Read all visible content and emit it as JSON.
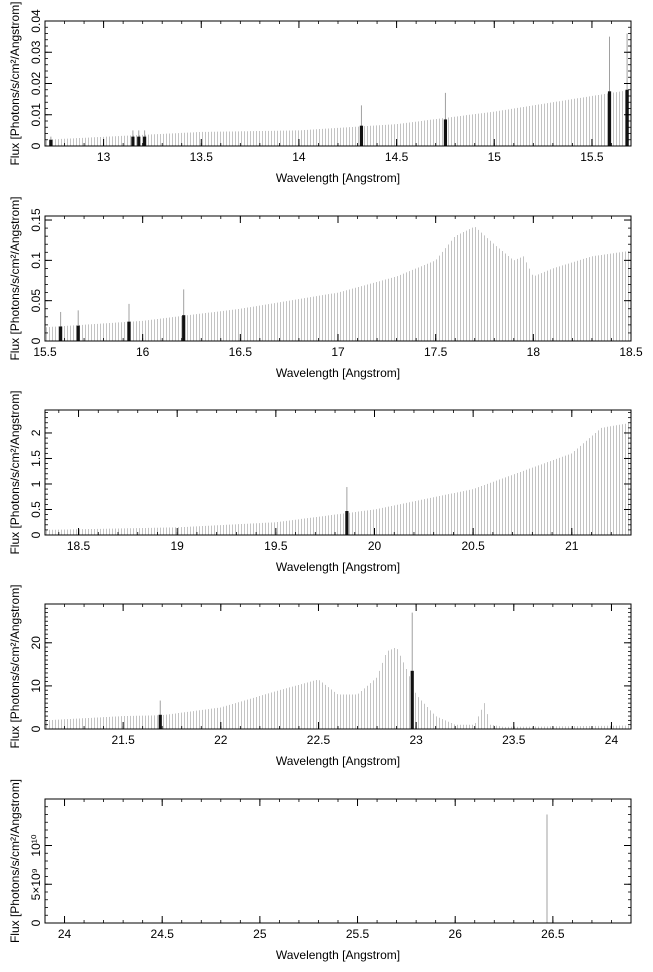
{
  "chart_data": [
    {
      "type": "bar",
      "xlabel": "Wavelength [Angstrom]",
      "ylabel": "Flux [Photons/s/cm²/Angstrom]",
      "xlim": [
        12.7,
        15.7
      ],
      "ylim": [
        0,
        0.04
      ],
      "xticks": [
        13,
        13.5,
        14,
        14.5,
        15,
        15.5
      ],
      "xtick_labels": [
        "13",
        "13.5",
        "14",
        "14.5",
        "15",
        "15.5"
      ],
      "xminor": 0.1,
      "yticks": [
        0,
        0.01,
        0.02,
        0.03,
        0.04
      ],
      "ytick_labels": [
        "0",
        "0.01",
        "0.02",
        "0.03",
        "0.04"
      ],
      "yminor": 0.002,
      "continuum": [
        [
          12.7,
          0.002
        ],
        [
          13.5,
          0.0045
        ],
        [
          14.0,
          0.005
        ],
        [
          14.5,
          0.007
        ],
        [
          15.0,
          0.011
        ],
        [
          15.5,
          0.016
        ],
        [
          15.7,
          0.018
        ]
      ],
      "lines": [
        {
          "x": 12.73,
          "y": 0.002,
          "err": 0.001
        },
        {
          "x": 13.15,
          "y": 0.003,
          "err": 0.002
        },
        {
          "x": 13.18,
          "y": 0.003,
          "err": 0.002
        },
        {
          "x": 13.21,
          "y": 0.003,
          "err": 0.002
        },
        {
          "x": 14.32,
          "y": 0.0065,
          "err": 0.0065
        },
        {
          "x": 14.75,
          "y": 0.0085,
          "err": 0.0085
        },
        {
          "x": 15.59,
          "y": 0.0175,
          "err": 0.0175
        },
        {
          "x": 15.68,
          "y": 0.018,
          "err": 0.018
        }
      ]
    },
    {
      "type": "bar",
      "xlabel": "Wavelength [Angstrom]",
      "ylabel": "Flux [Photons/s/cm²/Angstrom]",
      "xlim": [
        15.5,
        18.5
      ],
      "ylim": [
        0,
        0.155
      ],
      "xticks": [
        15.5,
        16,
        16.5,
        17,
        17.5,
        18,
        18.5
      ],
      "xtick_labels": [
        "15.5",
        "16",
        "16.5",
        "17",
        "17.5",
        "18",
        "18.5"
      ],
      "xminor": 0.1,
      "yticks": [
        0,
        0.05,
        0.1,
        0.15
      ],
      "ytick_labels": [
        "0",
        "0.05",
        "0.1",
        "0.15"
      ],
      "yminor": 0.01,
      "continuum": [
        [
          15.5,
          0.017
        ],
        [
          16.0,
          0.025
        ],
        [
          16.5,
          0.04
        ],
        [
          17.0,
          0.06
        ],
        [
          17.3,
          0.08
        ],
        [
          17.5,
          0.1
        ],
        [
          17.6,
          0.13
        ],
        [
          17.7,
          0.142
        ],
        [
          17.8,
          0.12
        ],
        [
          17.9,
          0.1
        ],
        [
          17.95,
          0.105
        ],
        [
          18.0,
          0.08
        ],
        [
          18.1,
          0.09
        ],
        [
          18.3,
          0.105
        ],
        [
          18.5,
          0.112
        ]
      ],
      "lines": [
        {
          "x": 15.58,
          "y": 0.018,
          "err": 0.018
        },
        {
          "x": 15.67,
          "y": 0.019,
          "err": 0.019
        },
        {
          "x": 15.93,
          "y": 0.024,
          "err": 0.022
        },
        {
          "x": 16.21,
          "y": 0.032,
          "err": 0.032
        }
      ]
    },
    {
      "type": "bar",
      "xlabel": "Wavelength [Angstrom]",
      "ylabel": "Flux [Photons/s/cm²/Angstrom]",
      "xlim": [
        18.33,
        21.3
      ],
      "ylim": [
        0,
        2.45
      ],
      "xticks": [
        18.5,
        19,
        19.5,
        20,
        20.5,
        21
      ],
      "xtick_labels": [
        "18.5",
        "19",
        "19.5",
        "20",
        "20.5",
        "21"
      ],
      "xminor": 0.1,
      "yticks": [
        0,
        0.5,
        1,
        1.5,
        2
      ],
      "ytick_labels": [
        "0",
        "0.5",
        "1",
        "1.5",
        "2"
      ],
      "yminor": 0.1,
      "continuum": [
        [
          18.33,
          0.1
        ],
        [
          19.0,
          0.15
        ],
        [
          19.5,
          0.25
        ],
        [
          20.0,
          0.5
        ],
        [
          20.5,
          0.9
        ],
        [
          21.0,
          1.6
        ],
        [
          21.15,
          2.1
        ],
        [
          21.3,
          2.2
        ]
      ],
      "lines": [
        {
          "x": 19.86,
          "y": 0.47,
          "err": 0.47
        }
      ]
    },
    {
      "type": "bar",
      "xlabel": "Wavelength [Angstrom]",
      "ylabel": "Flux [Photons/s/cm²/Angstrom]",
      "xlim": [
        21.1,
        24.1
      ],
      "ylim": [
        0,
        29
      ],
      "xticks": [
        21.5,
        22,
        22.5,
        23,
        23.5,
        24
      ],
      "xtick_labels": [
        "21.5",
        "22",
        "22.5",
        "23",
        "23.5",
        "24"
      ],
      "xminor": 0.1,
      "yticks": [
        0,
        10,
        20
      ],
      "ytick_labels": [
        "0",
        "10",
        "20"
      ],
      "yminor": 1,
      "continuum": [
        [
          21.1,
          2
        ],
        [
          21.5,
          3
        ],
        [
          21.7,
          3.2
        ],
        [
          22.0,
          5
        ],
        [
          22.3,
          9
        ],
        [
          22.5,
          11.5
        ],
        [
          22.6,
          8
        ],
        [
          22.7,
          8
        ],
        [
          22.8,
          12
        ],
        [
          22.85,
          18
        ],
        [
          22.9,
          19
        ],
        [
          22.96,
          13
        ],
        [
          23.0,
          8
        ],
        [
          23.1,
          3
        ],
        [
          23.2,
          1
        ],
        [
          23.3,
          1
        ],
        [
          23.33,
          4
        ],
        [
          23.35,
          6
        ],
        [
          23.38,
          1
        ],
        [
          23.45,
          0.5
        ],
        [
          24.1,
          0.8
        ]
      ],
      "lines": [
        {
          "x": 21.69,
          "y": 3.3,
          "err": 3.3
        },
        {
          "x": 22.98,
          "y": 13.5,
          "err": 13.5
        }
      ]
    },
    {
      "type": "bar",
      "xlabel": "Wavelength [Angstrom]",
      "ylabel": "Flux [Photons/s/cm²/Angstrom]",
      "xlim": [
        23.9,
        26.9
      ],
      "ylim": [
        0,
        16000000000.0
      ],
      "xticks": [
        24,
        24.5,
        25,
        25.5,
        26,
        26.5
      ],
      "xtick_labels": [
        "24",
        "24.5",
        "25",
        "25.5",
        "26",
        "26.5"
      ],
      "xminor": 0.1,
      "yticks": [
        0,
        5000000000.0,
        10000000000.0
      ],
      "ytick_labels": [
        "0",
        "5×10⁹",
        "10¹⁰"
      ],
      "yminor": 1000000000.0,
      "continuum": [],
      "lines": [
        {
          "x": 26.47,
          "y": 0,
          "err": 14000000000.0
        }
      ]
    }
  ]
}
